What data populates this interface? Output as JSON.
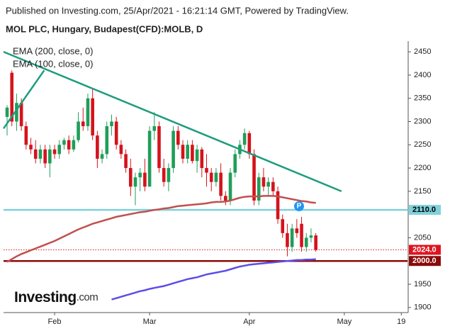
{
  "header": "Published on Investing.com, 25/Apr/2021 - 16:21:14 GMT, Powered by TradingView.",
  "logo": {
    "main": "Investing",
    "suffix": ".com"
  },
  "badge": "P",
  "chart_data": {
    "type": "candlestick",
    "title": "MOL PLC, Hungary, Budapest(CFD):MOLB, D",
    "up_color": "#1f9e5a",
    "down_color": "#d4131c",
    "open": [
      2310,
      2405,
      2300,
      2340,
      2290,
      2250,
      2240,
      2220,
      2240,
      2210,
      2240,
      2230,
      2250,
      2260,
      2240,
      2260,
      2300,
      2290,
      2350,
      2270,
      2220,
      2230,
      2290,
      2300,
      2250,
      2230,
      2200,
      2160,
      2180,
      2190,
      2160,
      2280,
      2290,
      2200,
      2170,
      2200,
      2280,
      2250,
      2220,
      2250,
      2215,
      2240,
      2200,
      2190,
      2170,
      2190,
      2140,
      2130,
      2190,
      2230,
      2250,
      2275,
      2230,
      2130,
      2180,
      2160,
      2170,
      2150,
      2090,
      2060,
      2030,
      2070,
      2080,
      2030,
      2050,
      2055
    ],
    "high": [
      2335,
      2410,
      2360,
      2350,
      2300,
      2265,
      2260,
      2250,
      2250,
      2250,
      2250,
      2260,
      2265,
      2270,
      2270,
      2320,
      2330,
      2360,
      2370,
      2280,
      2240,
      2300,
      2315,
      2310,
      2260,
      2240,
      2220,
      2190,
      2200,
      2220,
      2290,
      2320,
      2300,
      2220,
      2210,
      2290,
      2290,
      2260,
      2260,
      2260,
      2250,
      2245,
      2230,
      2200,
      2200,
      2210,
      2150,
      2200,
      2240,
      2260,
      2285,
      2280,
      2240,
      2190,
      2200,
      2180,
      2180,
      2160,
      2100,
      2080,
      2080,
      2090,
      2095,
      2060,
      2070,
      2060
    ],
    "low": [
      2270,
      2290,
      2280,
      2280,
      2240,
      2230,
      2210,
      2210,
      2200,
      2180,
      2220,
      2220,
      2240,
      2230,
      2235,
      2255,
      2280,
      2280,
      2260,
      2200,
      2210,
      2220,
      2270,
      2240,
      2220,
      2190,
      2140,
      2120,
      2150,
      2150,
      2160,
      2260,
      2190,
      2160,
      2150,
      2190,
      2240,
      2210,
      2210,
      2210,
      2190,
      2180,
      2160,
      2150,
      2160,
      2130,
      2120,
      2120,
      2180,
      2220,
      2240,
      2220,
      2120,
      2120,
      2150,
      2140,
      2140,
      2080,
      2050,
      2010,
      2020,
      2050,
      2020,
      2020,
      2040,
      2020
    ],
    "close": [
      2330,
      2300,
      2340,
      2290,
      2250,
      2240,
      2220,
      2240,
      2210,
      2240,
      2230,
      2250,
      2260,
      2240,
      2260,
      2300,
      2290,
      2350,
      2270,
      2220,
      2230,
      2290,
      2300,
      2250,
      2230,
      2200,
      2160,
      2180,
      2190,
      2160,
      2280,
      2290,
      2200,
      2170,
      2200,
      2280,
      2250,
      2220,
      2250,
      2215,
      2240,
      2200,
      2190,
      2170,
      2190,
      2140,
      2130,
      2190,
      2230,
      2250,
      2275,
      2230,
      2130,
      2180,
      2160,
      2170,
      2150,
      2090,
      2060,
      2030,
      2070,
      2060,
      2030,
      2050,
      2055,
      2024
    ],
    "series": [
      {
        "name": "EMA (200, close, 0)",
        "color": "#5b4ee8",
        "values": [
          null,
          null,
          null,
          null,
          null,
          null,
          null,
          null,
          null,
          null,
          null,
          null,
          null,
          null,
          null,
          null,
          null,
          null,
          null,
          null,
          null,
          null,
          1917,
          1920,
          1923,
          1926,
          1929,
          1932,
          1935,
          1937,
          1940,
          1942,
          1944,
          1946,
          1949,
          1952,
          1955,
          1958,
          1961,
          1963,
          1965,
          1968,
          1971,
          1973,
          1975,
          1977,
          1979,
          1982,
          1985,
          1988,
          1990,
          1992,
          1993,
          1994,
          1995,
          1996,
          1997,
          1998,
          1999,
          2000,
          2001,
          2002,
          2002,
          2003,
          2003,
          2004
        ]
      },
      {
        "name": "EMA (100, close, 0)",
        "color": "#c0504d",
        "values": [
          1998,
          2004,
          2010,
          2015,
          2019,
          2023,
          2027,
          2031,
          2035,
          2039,
          2043,
          2048,
          2053,
          2058,
          2063,
          2068,
          2072,
          2076,
          2080,
          2083,
          2086,
          2089,
          2092,
          2095,
          2097,
          2099,
          2101,
          2103,
          2105,
          2106,
          2108,
          2110,
          2111,
          2113,
          2114,
          2116,
          2118,
          2119,
          2120,
          2121,
          2122,
          2123,
          2124,
          2126,
          2127,
          2127,
          2128,
          2130,
          2133,
          2136,
          2138,
          2139,
          2139,
          2139,
          2140,
          2140,
          2140,
          2139,
          2137,
          2135,
          2133,
          2131,
          2129,
          2128,
          2126,
          2125
        ]
      }
    ],
    "trendlines": [
      {
        "color": "#1e9c7e",
        "x": [
          -0.75,
          70.4
        ],
        "y": [
          2450,
          2150
        ]
      },
      {
        "color": "#1e9c7e",
        "x": [
          -0.75,
          7.8
        ],
        "y": [
          2285,
          2410
        ]
      }
    ],
    "levels": [
      {
        "value": 2110,
        "label": "2110.0",
        "color": "#7fd1da",
        "text_color": "#000000",
        "style": "solid"
      },
      {
        "value": 2024,
        "label": "2024.0",
        "color": "#e0141e",
        "text_color": "#ffffff",
        "style": "dotted"
      },
      {
        "value": 2000,
        "label": "2000.0",
        "color": "#8b0a0a",
        "text_color": "#ffffff",
        "style": "solid"
      }
    ],
    "xlim": [
      -0.75,
      84.3
    ],
    "xticks": [
      {
        "value": 10,
        "label": "Feb"
      },
      {
        "value": 30,
        "label": "Mar"
      },
      {
        "value": 51,
        "label": "Apr"
      },
      {
        "value": 71,
        "label": "May"
      },
      {
        "value": 83,
        "label": "19"
      }
    ],
    "ylim": [
      1889,
      2470
    ],
    "yticks": [
      1900,
      1950,
      2050,
      2150,
      2200,
      2250,
      2300,
      2350,
      2400,
      2450
    ]
  }
}
